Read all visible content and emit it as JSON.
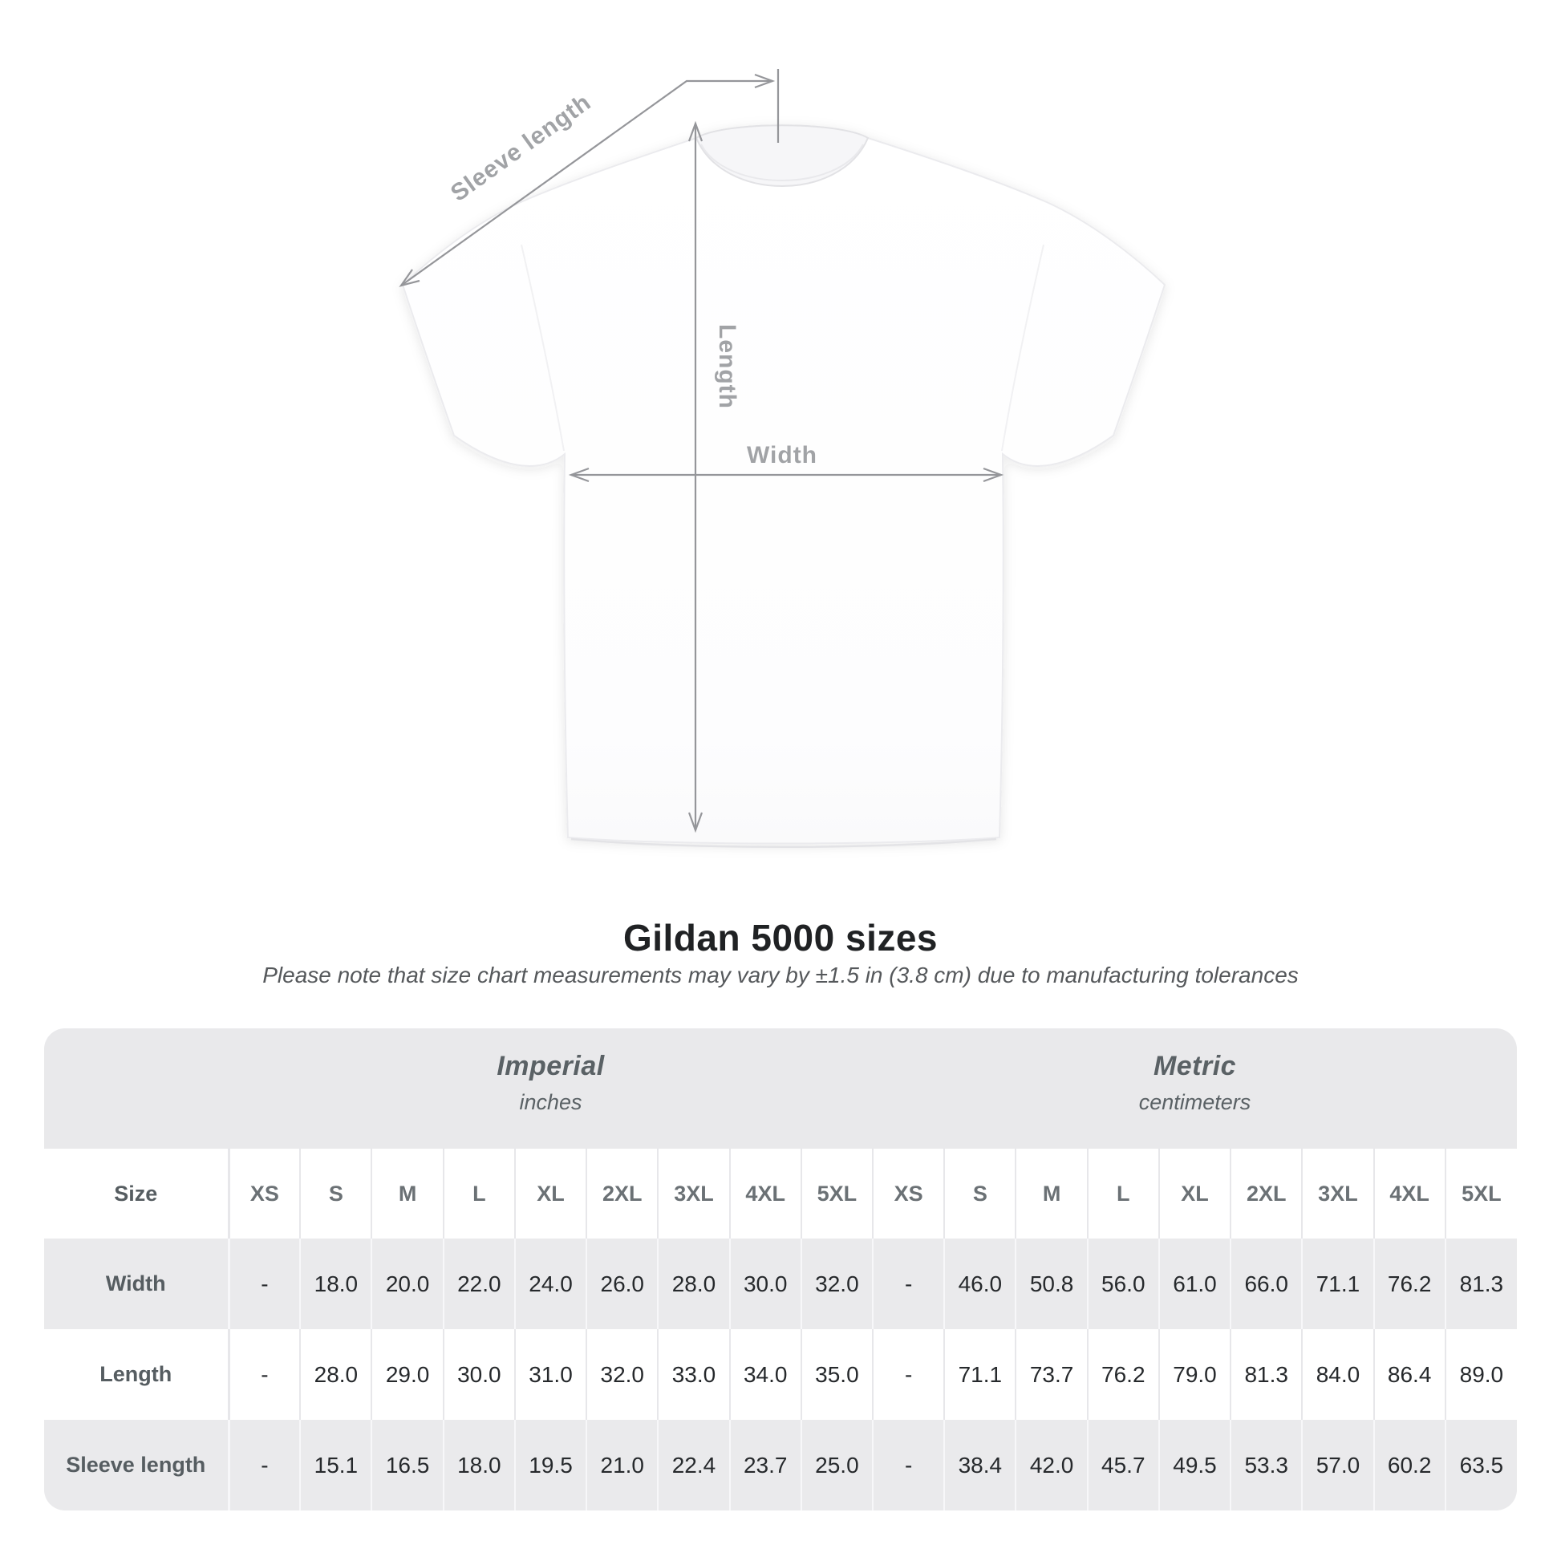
{
  "title": "Gildan 5000 sizes",
  "subtitle": "Please note that size chart measurements may vary by ±1.5 in (3.8 cm) due to manufacturing tolerances",
  "diagram": {
    "sleeve_length_label": "Sleeve length",
    "length_label": "Length",
    "width_label": "Width"
  },
  "table": {
    "corner_label": "Size",
    "sections": [
      {
        "name": "Imperial",
        "unit": "inches",
        "columns": [
          "XS",
          "S",
          "M",
          "L",
          "XL",
          "2XL",
          "3XL",
          "4XL",
          "5XL"
        ]
      },
      {
        "name": "Metric",
        "unit": "centimeters",
        "columns": [
          "XS",
          "S",
          "M",
          "L",
          "XL",
          "2XL",
          "3XL",
          "4XL",
          "5XL"
        ]
      }
    ],
    "rows": [
      {
        "label": "Width",
        "values": [
          "-",
          "18.0",
          "20.0",
          "22.0",
          "24.0",
          "26.0",
          "28.0",
          "30.0",
          "32.0",
          "-",
          "46.0",
          "50.8",
          "56.0",
          "61.0",
          "66.0",
          "71.1",
          "76.2",
          "81.3"
        ]
      },
      {
        "label": "Length",
        "values": [
          "-",
          "28.0",
          "29.0",
          "30.0",
          "31.0",
          "32.0",
          "33.0",
          "34.0",
          "35.0",
          "-",
          "71.1",
          "73.7",
          "76.2",
          "79.0",
          "81.3",
          "84.0",
          "86.4",
          "89.0"
        ]
      },
      {
        "label": "Sleeve length",
        "values": [
          "-",
          "15.1",
          "16.5",
          "18.0",
          "19.5",
          "21.0",
          "22.4",
          "23.7",
          "25.0",
          "-",
          "38.4",
          "42.0",
          "45.7",
          "49.5",
          "53.3",
          "57.0",
          "60.2",
          "63.5"
        ]
      }
    ]
  },
  "chart_data": {
    "type": "table",
    "title": "Gildan 5000 sizes",
    "note": "Please note that size chart measurements may vary by ±1.5 in (3.8 cm) due to manufacturing tolerances",
    "sections": [
      {
        "name": "Imperial",
        "unit": "inches"
      },
      {
        "name": "Metric",
        "unit": "centimeters"
      }
    ],
    "columns": [
      "XS",
      "S",
      "M",
      "L",
      "XL",
      "2XL",
      "3XL",
      "4XL",
      "5XL"
    ],
    "rows": [
      {
        "measurement": "Width",
        "imperial": [
          "-",
          18.0,
          20.0,
          22.0,
          24.0,
          26.0,
          28.0,
          30.0,
          32.0
        ],
        "metric": [
          "-",
          46.0,
          50.8,
          56.0,
          61.0,
          66.0,
          71.1,
          76.2,
          81.3
        ]
      },
      {
        "measurement": "Length",
        "imperial": [
          "-",
          28.0,
          29.0,
          30.0,
          31.0,
          32.0,
          33.0,
          34.0,
          35.0
        ],
        "metric": [
          "-",
          71.1,
          73.7,
          76.2,
          79.0,
          81.3,
          84.0,
          86.4,
          89.0
        ]
      },
      {
        "measurement": "Sleeve length",
        "imperial": [
          "-",
          15.1,
          16.5,
          18.0,
          19.5,
          21.0,
          22.4,
          23.7,
          25.0
        ],
        "metric": [
          "-",
          38.4,
          42.0,
          45.7,
          49.5,
          53.3,
          57.0,
          60.2,
          63.5
        ]
      }
    ]
  },
  "theme": {
    "band_bg": "#e9e9eb",
    "stripe_bg": "#eaeaec",
    "diagram_line": "#95969a",
    "diagram_label": "#a1a3a6",
    "title_color": "#202224",
    "value_color": "#26292c"
  }
}
